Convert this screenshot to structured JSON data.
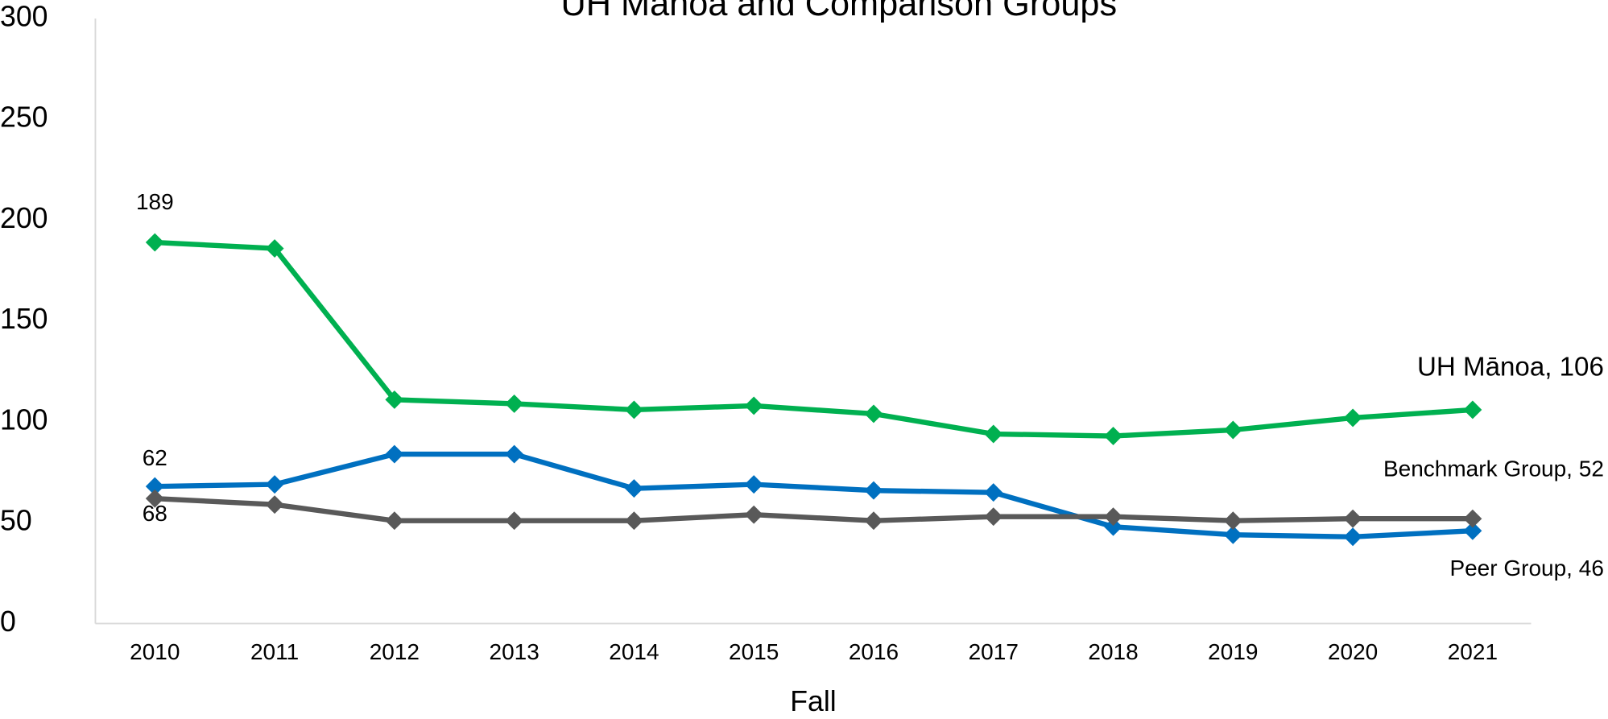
{
  "chart_data": {
    "type": "line",
    "title": "UH Mānoa and Comparison Groups",
    "x_label": "Fall",
    "categories": [
      "2010",
      "2011",
      "2012",
      "2013",
      "2014",
      "2015",
      "2016",
      "2017",
      "2018",
      "2019",
      "2020",
      "2021"
    ],
    "ylim": [
      0,
      300
    ],
    "yticks": [
      0,
      50,
      100,
      150,
      200,
      250,
      300
    ],
    "grid": false,
    "series": [
      {
        "color": "#00b050",
        "values": [
          189,
          186,
          111,
          109,
          106,
          108,
          104,
          94,
          93,
          96,
          102,
          106
        ],
        "value_labels": [
          "189",
          null,
          null,
          null,
          null,
          null,
          null,
          null,
          null,
          null,
          null,
          "UH Mānoa, 106"
        ]
      },
      {
        "color": "#0070c0",
        "values": [
          68,
          69,
          84,
          84,
          67,
          69,
          66,
          65,
          48,
          44,
          43,
          46
        ],
        "value_labels": [
          "68",
          null,
          null,
          null,
          null,
          null,
          null,
          null,
          null,
          null,
          null,
          "Peer Group, 46"
        ]
      },
      {
        "color": "#595959",
        "values": [
          62,
          59,
          51,
          51,
          51,
          54,
          51,
          53,
          53,
          51,
          52,
          52
        ],
        "value_labels": [
          "62",
          null,
          null,
          null,
          null,
          null,
          null,
          null,
          null,
          null,
          null,
          "Benchmark Group, 52"
        ]
      }
    ]
  }
}
